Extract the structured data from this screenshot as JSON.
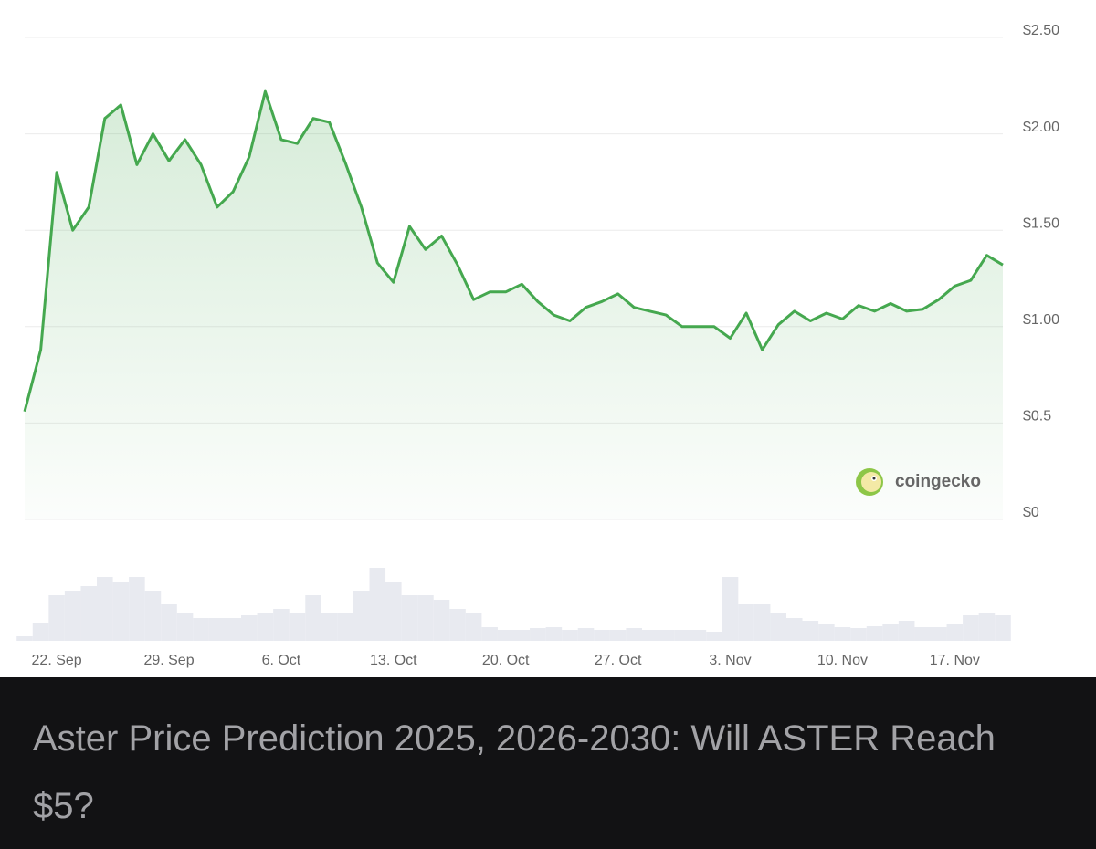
{
  "chart_data": {
    "type": "line",
    "categories": [
      null,
      null,
      "22. Sep",
      null,
      null,
      null,
      null,
      null,
      null,
      "29. Sep",
      null,
      null,
      null,
      null,
      null,
      null,
      "6. Oct",
      null,
      null,
      null,
      null,
      null,
      null,
      "13. Oct",
      null,
      null,
      null,
      null,
      null,
      null,
      "20. Oct",
      null,
      null,
      null,
      null,
      null,
      null,
      "27. Oct",
      null,
      null,
      null,
      null,
      null,
      null,
      "3. Nov",
      null,
      null,
      null,
      null,
      null,
      null,
      "10. Nov",
      null,
      null,
      null,
      null,
      null,
      null,
      "17. Nov",
      null,
      null,
      null
    ],
    "series": [
      {
        "color": "#45a84f",
        "values": [
          0.56,
          0.88,
          1.8,
          1.5,
          1.62,
          2.08,
          2.15,
          1.84,
          2.0,
          1.86,
          1.97,
          1.84,
          1.62,
          1.7,
          1.88,
          2.22,
          1.97,
          1.95,
          2.08,
          2.06,
          1.85,
          1.62,
          1.33,
          1.23,
          1.52,
          1.4,
          1.47,
          1.32,
          1.14,
          1.18,
          1.18,
          1.22,
          1.13,
          1.06,
          1.03,
          1.1,
          1.13,
          1.17,
          1.1,
          1.08,
          1.06,
          1.0,
          1.0,
          1.0,
          0.94,
          1.07,
          0.88,
          1.01,
          1.08,
          1.03,
          1.07,
          1.04,
          1.11,
          1.08,
          1.12,
          1.08,
          1.09,
          1.14,
          1.21,
          1.24,
          1.37,
          1.32
        ]
      }
    ],
    "volume": {
      "color": "#e8eaf0",
      "values": [
        5,
        20,
        50,
        55,
        60,
        70,
        65,
        70,
        55,
        40,
        30,
        25,
        25,
        25,
        28,
        30,
        35,
        30,
        50,
        30,
        30,
        55,
        80,
        65,
        50,
        50,
        45,
        35,
        30,
        15,
        12,
        12,
        14,
        15,
        12,
        14,
        12,
        12,
        14,
        12,
        12,
        12,
        12,
        10,
        70,
        40,
        40,
        30,
        25,
        22,
        18,
        15,
        14,
        16,
        18,
        22,
        15,
        15,
        18,
        28,
        30,
        28
      ]
    },
    "ylim": [
      0,
      2.5
    ],
    "yticks": [
      {
        "value": 0,
        "label": "$0"
      },
      {
        "value": 0.5,
        "label": "$0.5"
      },
      {
        "value": 1,
        "label": "$1.00"
      },
      {
        "value": 1.5,
        "label": "$1.50"
      },
      {
        "value": 2,
        "label": "$2.00"
      },
      {
        "value": 2.5,
        "label": "$2.50"
      }
    ],
    "grid": true,
    "watermark": "coingecko"
  },
  "caption": "Aster Price Prediction 2025, 2026-2030: Will ASTER Reach $5?"
}
